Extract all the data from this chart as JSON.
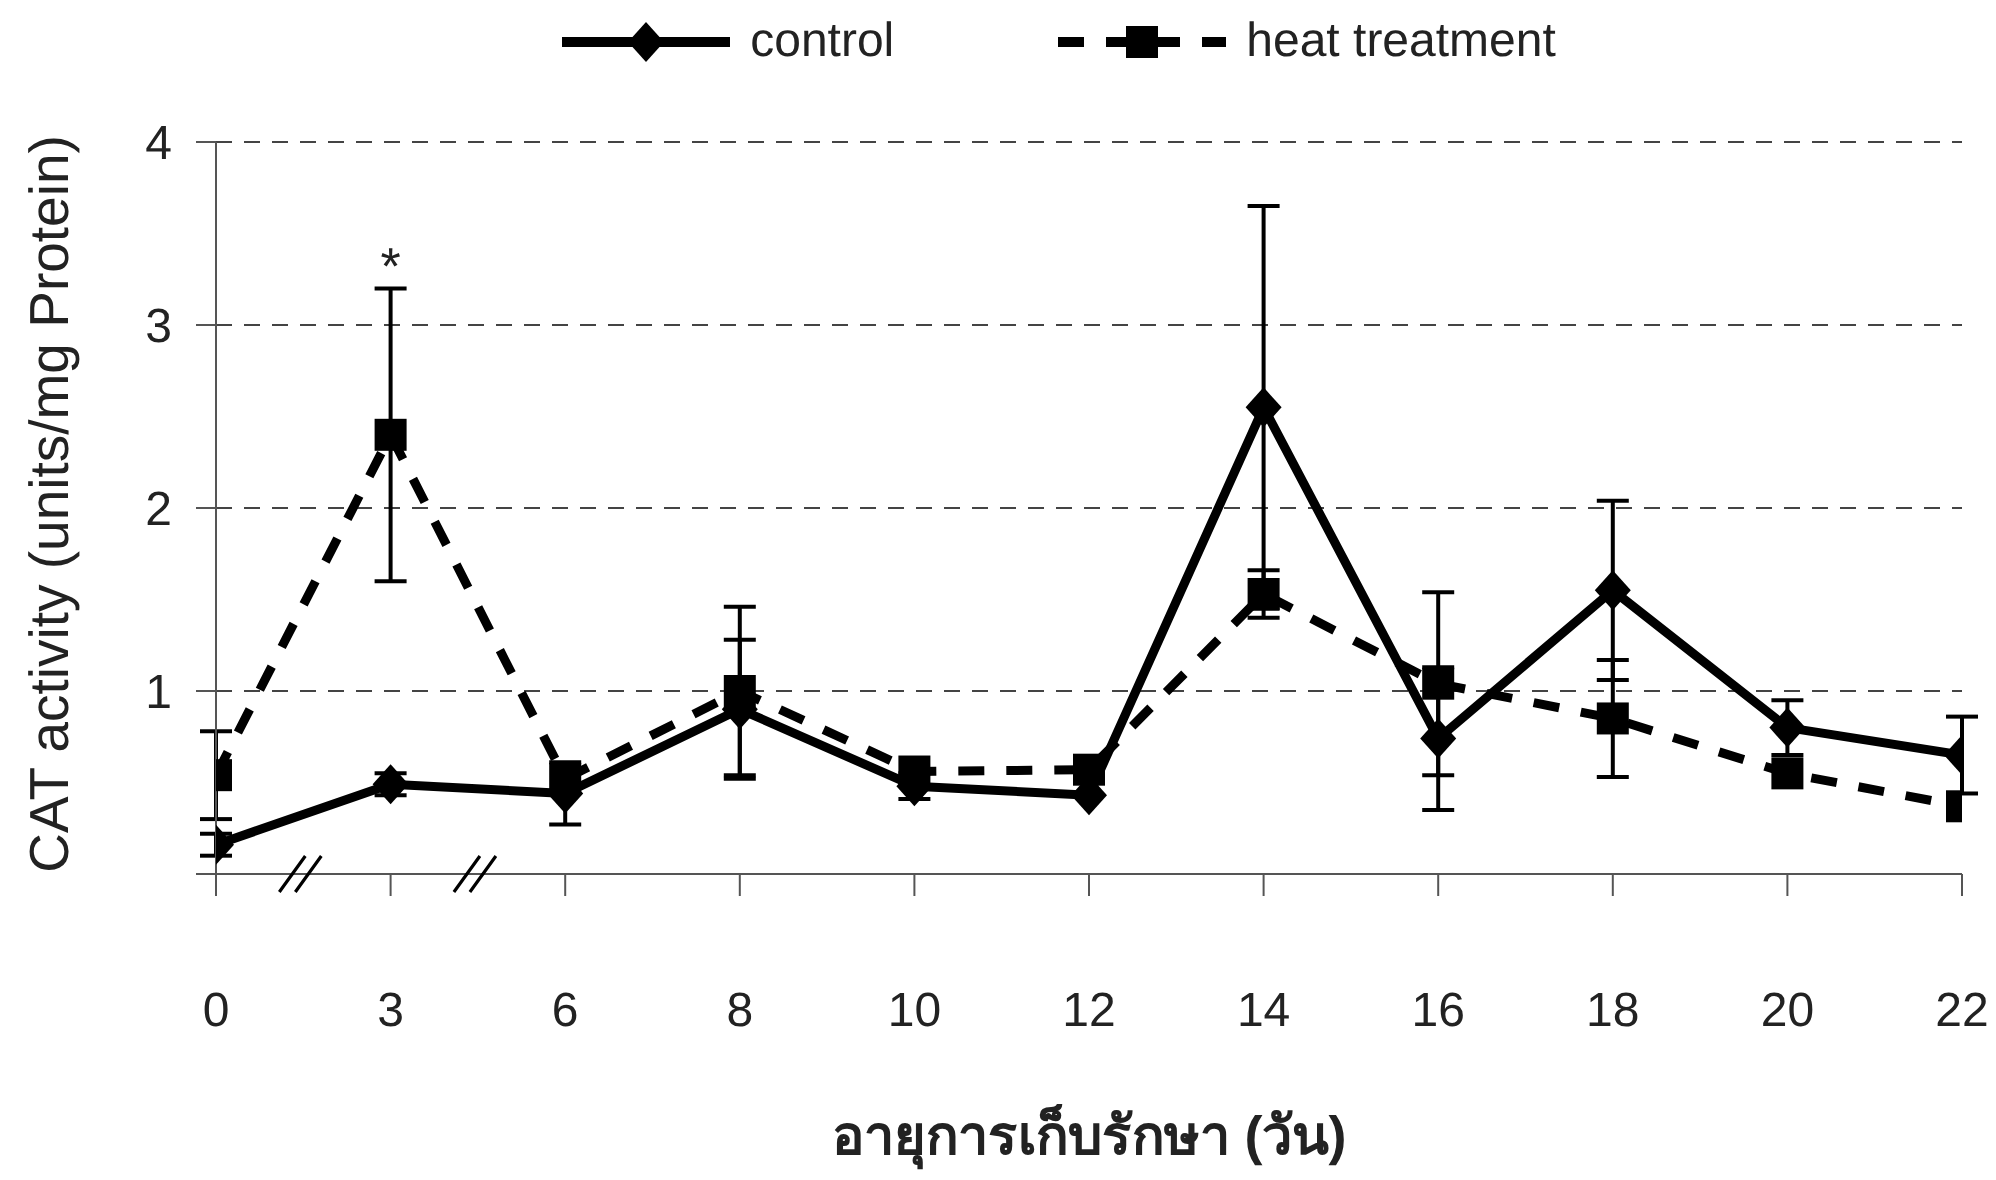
{
  "chart_data": {
    "type": "line",
    "xlabel": "อายุการเก็บรักษา (วัน)",
    "ylabel": "CAT activity (units/mg Protein)",
    "categories": [
      "0",
      "3",
      "6",
      "8",
      "10",
      "12",
      "14",
      "16",
      "18",
      "20",
      "22"
    ],
    "series": [
      {
        "name": "control",
        "color": "#000000",
        "marker": "diamond",
        "line_style": "solid",
        "values": [
          0.16,
          0.49,
          0.44,
          0.9,
          0.48,
          0.43,
          2.55,
          0.74,
          1.55,
          0.8,
          0.65
        ],
        "errors": [
          0.06,
          0.06,
          0.17,
          0.38,
          0.07,
          null,
          1.1,
          0.39,
          0.49,
          0.15,
          0.21
        ]
      },
      {
        "name": "heat treatment",
        "color": "#000000",
        "marker": "square",
        "line_style": "dashed",
        "values": [
          0.54,
          2.4,
          0.52,
          1.0,
          0.56,
          0.57,
          1.53,
          1.04,
          0.85,
          0.55,
          0.37
        ],
        "errors": [
          0.24,
          0.8,
          null,
          0.46,
          null,
          null,
          0.13,
          0.5,
          0.32,
          null,
          null
        ]
      }
    ],
    "ylim": [
      0,
      4
    ],
    "yticks": [
      {
        "value": 0,
        "label": null
      },
      1,
      2,
      3,
      4
    ],
    "grid": "y",
    "legend": "top",
    "annotations": [
      "*"
    ]
  }
}
